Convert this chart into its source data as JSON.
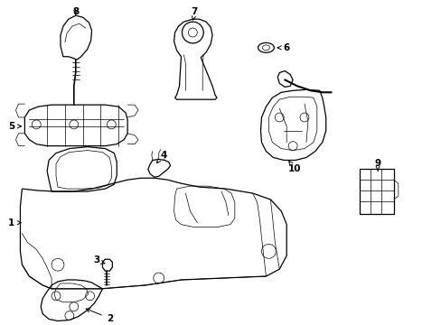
{
  "background_color": "#ffffff",
  "line_color": "#000000",
  "figsize": [
    4.89,
    3.6
  ],
  "dpi": 100,
  "lw_main": 0.9,
  "lw_thin": 0.5,
  "label_fontsize": 7.5
}
